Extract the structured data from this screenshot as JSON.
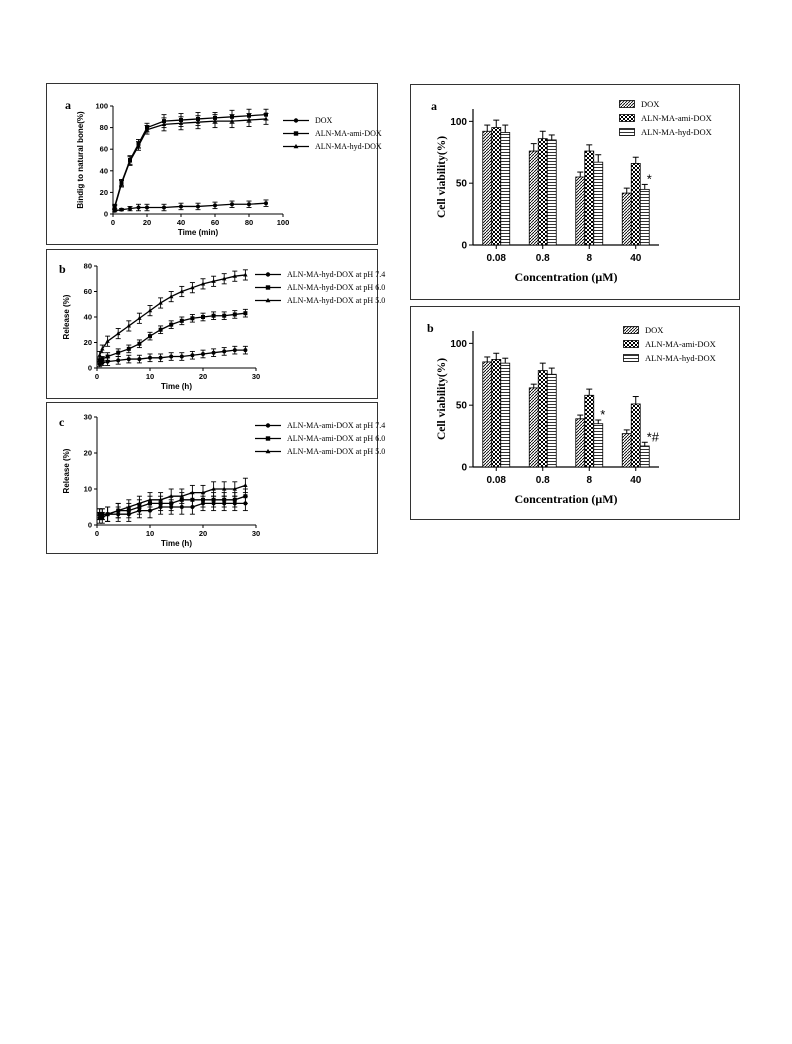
{
  "panels": [
    {
      "id": "left-a",
      "letter": "a",
      "legend": [
        "DOX",
        "ALN-MA-ami-DOX",
        "ALN-MA-hyd-DOX"
      ]
    },
    {
      "id": "left-b",
      "letter": "b",
      "legend": [
        "ALN-MA-hyd-DOX  at pH 7.4",
        "ALN-MA-hyd-DOX  at pH 6.0",
        "ALN-MA-hyd-DOX  at pH 5.0"
      ]
    },
    {
      "id": "left-c",
      "letter": "c",
      "legend": [
        "ALN-MA-ami-DOX  at pH 7.4",
        "ALN-MA-ami-DOX  at pH 6.0",
        "ALN-MA-ami-DOX  at pH 5.0"
      ]
    },
    {
      "id": "right-a",
      "letter": "a",
      "legend": [
        "DOX",
        "ALN-MA-ami-DOX",
        "ALN-MA-hyd-DOX"
      ]
    },
    {
      "id": "right-b",
      "letter": "b",
      "legend": [
        "DOX",
        "ALN-MA-ami-DOX",
        "ALN-MA-hyd-DOX"
      ]
    }
  ],
  "chart_data": [
    {
      "type": "line",
      "xlabel": "Time (min)",
      "ylabel": "Bindig to natural bone(%)",
      "xlim": [
        0,
        100
      ],
      "ylim": [
        0,
        100
      ],
      "xticks": [
        0,
        20,
        40,
        60,
        80,
        100
      ],
      "yticks": [
        0,
        20,
        40,
        60,
        80,
        100
      ],
      "series": [
        {
          "name": "DOX",
          "marker": "circle",
          "x": [
            1,
            5,
            10,
            15,
            20,
            30,
            40,
            50,
            60,
            70,
            80,
            90
          ],
          "y": [
            3,
            4,
            5,
            6,
            6,
            6,
            7,
            7,
            8,
            9,
            9,
            10
          ],
          "err": [
            1,
            1,
            2,
            3,
            3,
            3,
            3,
            3,
            3,
            3,
            3,
            3
          ]
        },
        {
          "name": "ALN-MA-ami-DOX",
          "marker": "square",
          "x": [
            1,
            5,
            10,
            15,
            20,
            30,
            40,
            50,
            60,
            70,
            80,
            90
          ],
          "y": [
            7,
            29,
            50,
            65,
            80,
            86,
            87,
            88,
            89,
            90,
            91,
            92
          ],
          "err": [
            2,
            3,
            4,
            4,
            4,
            6,
            6,
            6,
            5,
            6,
            6,
            5
          ]
        },
        {
          "name": "ALN-MA-hyd-DOX",
          "marker": "triangle",
          "x": [
            1,
            5,
            10,
            15,
            20,
            30,
            40,
            50,
            60,
            70,
            80,
            90
          ],
          "y": [
            6,
            28,
            49,
            63,
            78,
            83,
            84,
            85,
            86,
            86,
            87,
            88
          ],
          "err": [
            2,
            3,
            4,
            4,
            4,
            6,
            6,
            6,
            6,
            6,
            6,
            5
          ]
        }
      ]
    },
    {
      "type": "line",
      "xlabel": "Time (h)",
      "ylabel": "Release (%)",
      "xlim": [
        0,
        30
      ],
      "ylim": [
        0,
        80
      ],
      "xticks": [
        0,
        10,
        20,
        30
      ],
      "yticks": [
        0,
        20,
        40,
        60,
        80
      ],
      "series": [
        {
          "name": "ALN-MA-hyd-DOX  at pH 7.4",
          "marker": "circle",
          "x": [
            0.5,
            1,
            2,
            4,
            6,
            8,
            10,
            12,
            14,
            16,
            18,
            20,
            22,
            24,
            26,
            28
          ],
          "y": [
            3,
            4,
            5,
            6,
            7,
            7,
            8,
            8,
            9,
            9,
            10,
            11,
            12,
            13,
            14,
            14
          ],
          "err": [
            2,
            2,
            3,
            3,
            3,
            3,
            3,
            3,
            3,
            3,
            3,
            3,
            3,
            3,
            3,
            3
          ]
        },
        {
          "name": "ALN-MA-hyd-DOX  at pH 6.0",
          "marker": "square",
          "x": [
            0.5,
            1,
            2,
            4,
            6,
            8,
            10,
            12,
            14,
            16,
            18,
            20,
            22,
            24,
            26,
            28
          ],
          "y": [
            6,
            7,
            9,
            12,
            15,
            19,
            25,
            30,
            34,
            37,
            39,
            40,
            41,
            41,
            42,
            43
          ],
          "err": [
            2,
            2,
            3,
            3,
            3,
            3,
            3,
            3,
            3,
            3,
            3,
            3,
            3,
            3,
            3,
            3
          ]
        },
        {
          "name": "ALN-MA-hyd-DOX  at pH 5.0",
          "marker": "triangle",
          "x": [
            0.5,
            1,
            2,
            4,
            6,
            8,
            10,
            12,
            14,
            16,
            18,
            20,
            22,
            24,
            26,
            28
          ],
          "y": [
            10,
            15,
            21,
            27,
            33,
            39,
            45,
            51,
            56,
            60,
            63,
            66,
            68,
            70,
            72,
            73
          ],
          "err": [
            3,
            3,
            4,
            4,
            4,
            4,
            4,
            4,
            4,
            4,
            4,
            4,
            4,
            4,
            4,
            4
          ]
        }
      ]
    },
    {
      "type": "line",
      "xlabel": "Time (h)",
      "ylabel": "Release (%)",
      "xlim": [
        0,
        30
      ],
      "ylim": [
        0,
        30
      ],
      "xticks": [
        0,
        10,
        20,
        30
      ],
      "yticks": [
        0,
        10,
        20,
        30
      ],
      "series": [
        {
          "name": "ALN-MA-ami-DOX  at pH 7.4",
          "marker": "circle",
          "x": [
            0.5,
            1,
            2,
            4,
            6,
            8,
            10,
            12,
            14,
            16,
            18,
            20,
            22,
            24,
            26,
            28
          ],
          "y": [
            2,
            2,
            3,
            3,
            3,
            4,
            4,
            5,
            5,
            5,
            5,
            6,
            6,
            6,
            6,
            6
          ],
          "err": [
            1.5,
            1.5,
            2,
            2,
            2,
            2,
            2,
            2,
            2,
            2,
            2,
            2,
            2,
            2,
            2,
            2
          ]
        },
        {
          "name": "ALN-MA-ami-DOX  at pH 6.0",
          "marker": "square",
          "x": [
            0.5,
            1,
            2,
            4,
            6,
            8,
            10,
            12,
            14,
            16,
            18,
            20,
            22,
            24,
            26,
            28
          ],
          "y": [
            3,
            3,
            3,
            4,
            4,
            5,
            6,
            6,
            6,
            7,
            7,
            7,
            7,
            7,
            7,
            8
          ],
          "err": [
            1.5,
            1.5,
            2,
            2,
            2,
            2,
            2,
            2,
            2,
            2,
            2,
            2,
            2,
            2,
            2,
            2
          ]
        },
        {
          "name": "ALN-MA-ami-DOX  at pH 5.0",
          "marker": "triangle",
          "x": [
            0.5,
            1,
            2,
            4,
            6,
            8,
            10,
            12,
            14,
            16,
            18,
            20,
            22,
            24,
            26,
            28
          ],
          "y": [
            3,
            3,
            3,
            4,
            5,
            6,
            7,
            7,
            8,
            8,
            9,
            9,
            10,
            10,
            10,
            11
          ],
          "err": [
            1.5,
            1.5,
            2,
            2,
            2,
            2,
            2,
            2,
            2,
            2,
            2,
            2,
            2,
            2,
            2,
            2
          ]
        }
      ]
    },
    {
      "type": "bar",
      "xlabel": "Concentration (μM)",
      "ylabel": "Cell viability(%)",
      "categories": [
        "0.08",
        "0.8",
        "8",
        "40"
      ],
      "ylim": [
        0,
        110
      ],
      "yticks": [
        0,
        50,
        100
      ],
      "series": [
        {
          "name": "DOX",
          "values": [
            92,
            76,
            55,
            42
          ],
          "err": [
            5,
            6,
            4,
            4
          ]
        },
        {
          "name": "ALN-MA-ami-DOX",
          "values": [
            95,
            86,
            76,
            66
          ],
          "err": [
            6,
            6,
            5,
            5
          ]
        },
        {
          "name": "ALN-MA-hyd-DOX",
          "values": [
            91,
            85,
            67,
            45
          ],
          "err": [
            6,
            4,
            6,
            4
          ]
        }
      ],
      "annotations": [
        {
          "category": "40",
          "series": "ALN-MA-hyd-DOX",
          "text": "*"
        }
      ]
    },
    {
      "type": "bar",
      "xlabel": "Concentration (μM)",
      "ylabel": "Cell viability(%)",
      "categories": [
        "0.08",
        "0.8",
        "8",
        "40"
      ],
      "ylim": [
        0,
        110
      ],
      "yticks": [
        0,
        50,
        100
      ],
      "series": [
        {
          "name": "DOX",
          "values": [
            85,
            64,
            39,
            27
          ],
          "err": [
            4,
            3,
            3,
            3
          ]
        },
        {
          "name": "ALN-MA-ami-DOX",
          "values": [
            87,
            78,
            58,
            51
          ],
          "err": [
            5,
            6,
            5,
            6
          ]
        },
        {
          "name": "ALN-MA-hyd-DOX",
          "values": [
            84,
            75,
            35,
            17
          ],
          "err": [
            4,
            5,
            3,
            3
          ]
        }
      ],
      "annotations": [
        {
          "category": "8",
          "series": "ALN-MA-hyd-DOX",
          "text": "*"
        },
        {
          "category": "40",
          "series": "ALN-MA-hyd-DOX",
          "text": "*#"
        }
      ]
    }
  ]
}
